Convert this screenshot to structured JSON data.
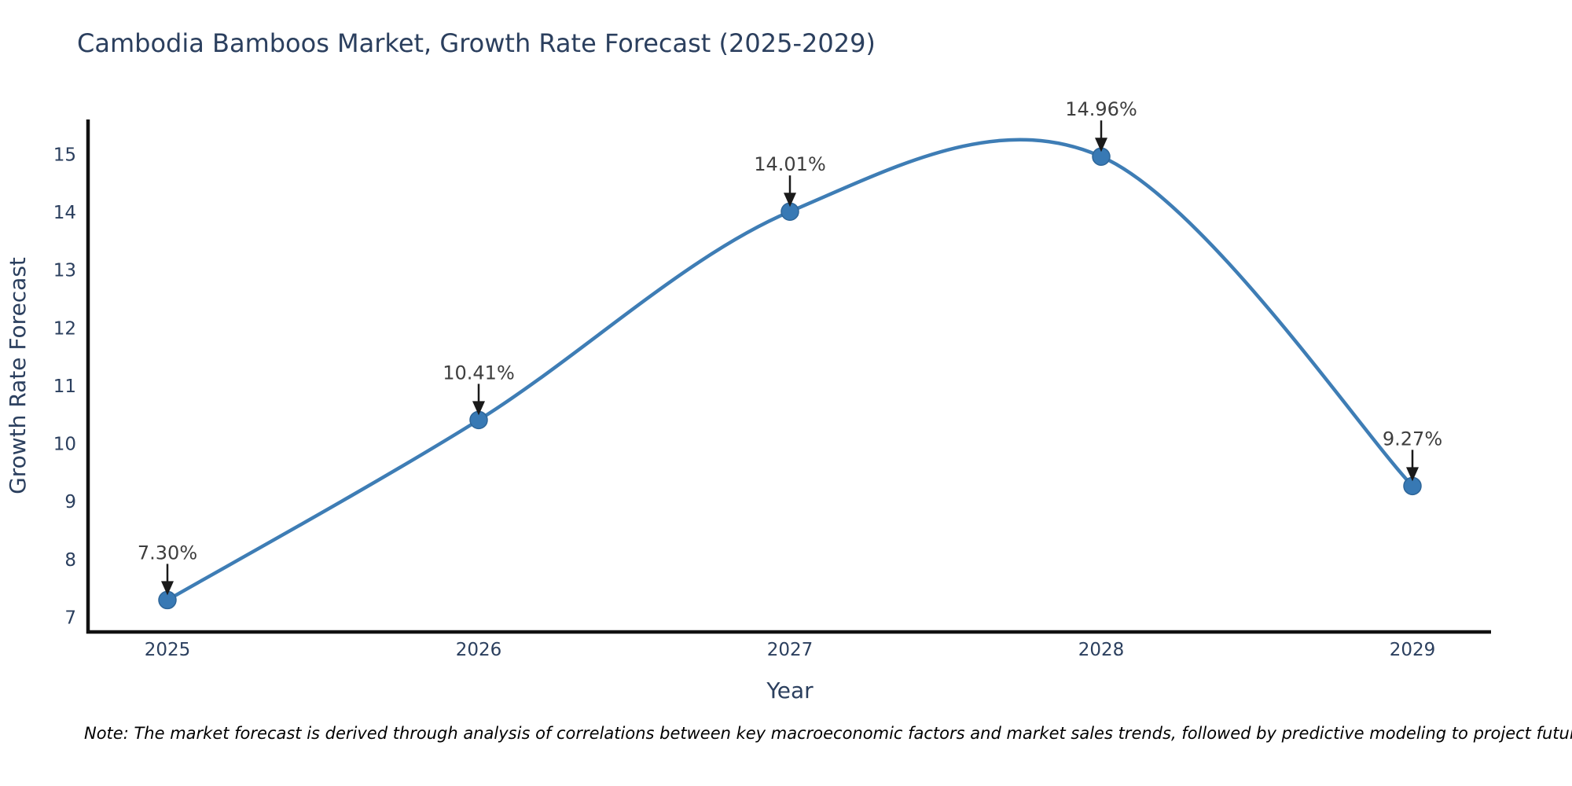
{
  "chart_data": {
    "type": "line",
    "title": "Cambodia Bamboos Market, Growth Rate Forecast (2025-2029)",
    "xlabel": "Year",
    "ylabel": "Growth Rate Forecast",
    "categories": [
      "2025",
      "2026",
      "2027",
      "2028",
      "2029"
    ],
    "series": [
      {
        "name": "Growth Rate Forecast",
        "values": [
          7.3,
          10.41,
          14.01,
          14.96,
          9.27
        ],
        "point_labels": [
          "7.30%",
          "10.41%",
          "14.01%",
          "14.96%",
          "9.27%"
        ]
      }
    ],
    "yticks": [
      7,
      8,
      9,
      10,
      11,
      12,
      13,
      14,
      15
    ],
    "ylim": [
      6.8,
      15.7
    ],
    "curve": "spline",
    "grid": false,
    "legend": "none",
    "colors": {
      "line": "#3e7db5",
      "marker_fill": "#3879b4",
      "marker_edge": "#2e6699",
      "axis_line": "#111111",
      "text": "#2b3f5e",
      "annotation_text": "#3e3e3e",
      "arrow": "#1a1a1a",
      "background": "#ffffff"
    },
    "note": "Note: The market forecast is derived through analysis of correlations between key macroeconomic factors and market sales trends, followed by predictive modeling to project future sales"
  }
}
